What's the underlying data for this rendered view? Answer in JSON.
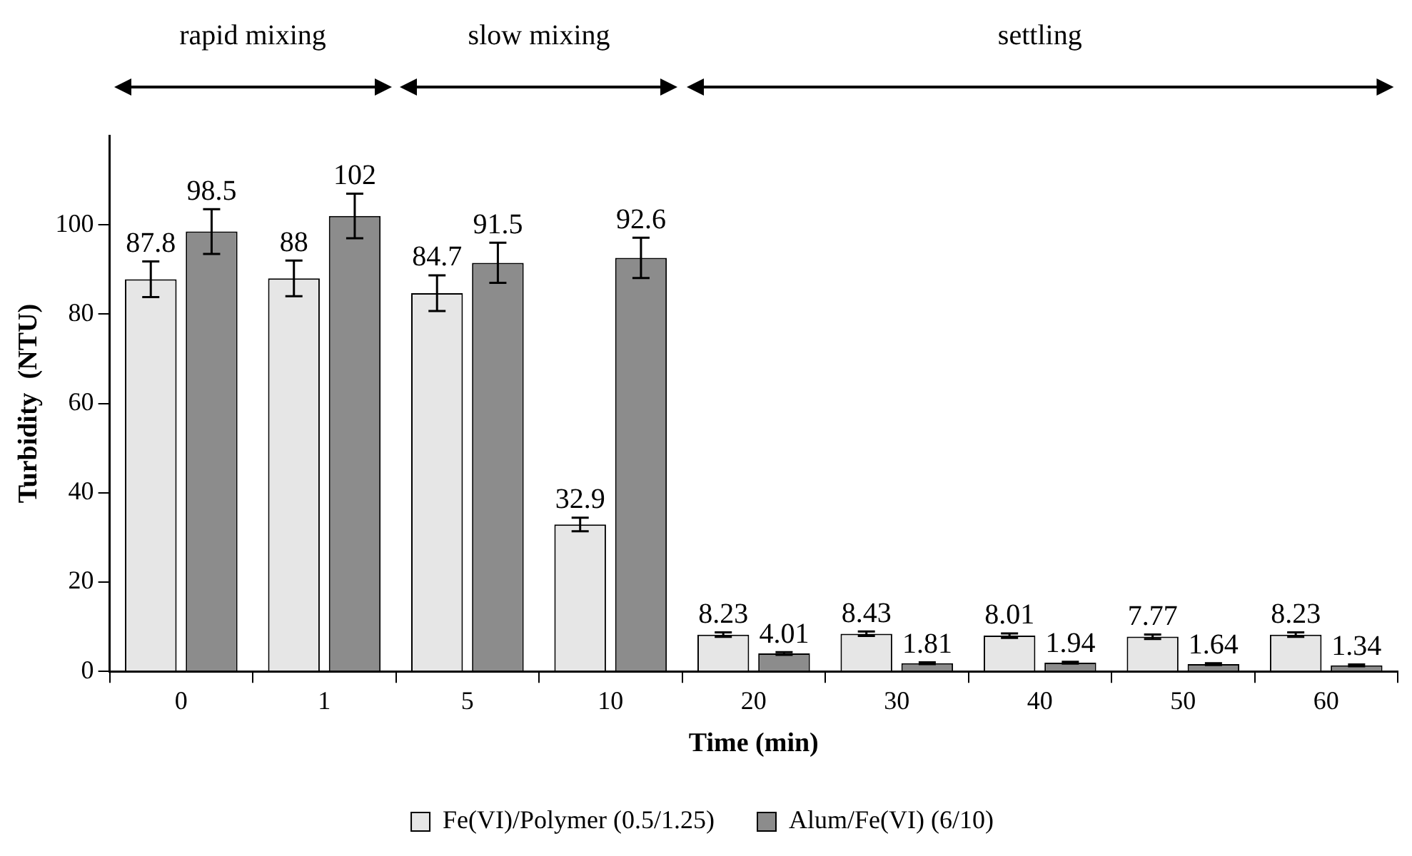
{
  "chart_data": {
    "type": "bar",
    "xlabel": "Time (min)",
    "ylabel": "Turbidity  (NTU)",
    "categories": [
      "0",
      "1",
      "5",
      "10",
      "20",
      "30",
      "40",
      "50",
      "60"
    ],
    "series": [
      {
        "name": "Fe(VI)/Polymer (0.5/1.25)",
        "color": "#e6e6e6",
        "values": [
          87.8,
          88,
          84.7,
          32.9,
          8.23,
          8.43,
          8.01,
          7.77,
          8.23
        ],
        "errors": [
          4,
          4,
          4,
          1.5,
          0.5,
          0.5,
          0.5,
          0.5,
          0.5
        ]
      },
      {
        "name": "Alum/Fe(VI) (6/10)",
        "color": "#8c8c8c",
        "values": [
          98.5,
          102,
          91.5,
          92.6,
          4.01,
          1.81,
          1.94,
          1.64,
          1.34
        ],
        "errors": [
          5,
          5,
          4.5,
          4.5,
          0.3,
          0.2,
          0.2,
          0.2,
          0.2
        ]
      }
    ],
    "ylim": [
      0,
      120
    ],
    "yticks": [
      0,
      20,
      40,
      60,
      80,
      100
    ],
    "grid": false,
    "legend": "bottom",
    "data_labels": true,
    "annotations": [
      "rapid mixing",
      "slow mixing",
      "settling"
    ]
  }
}
